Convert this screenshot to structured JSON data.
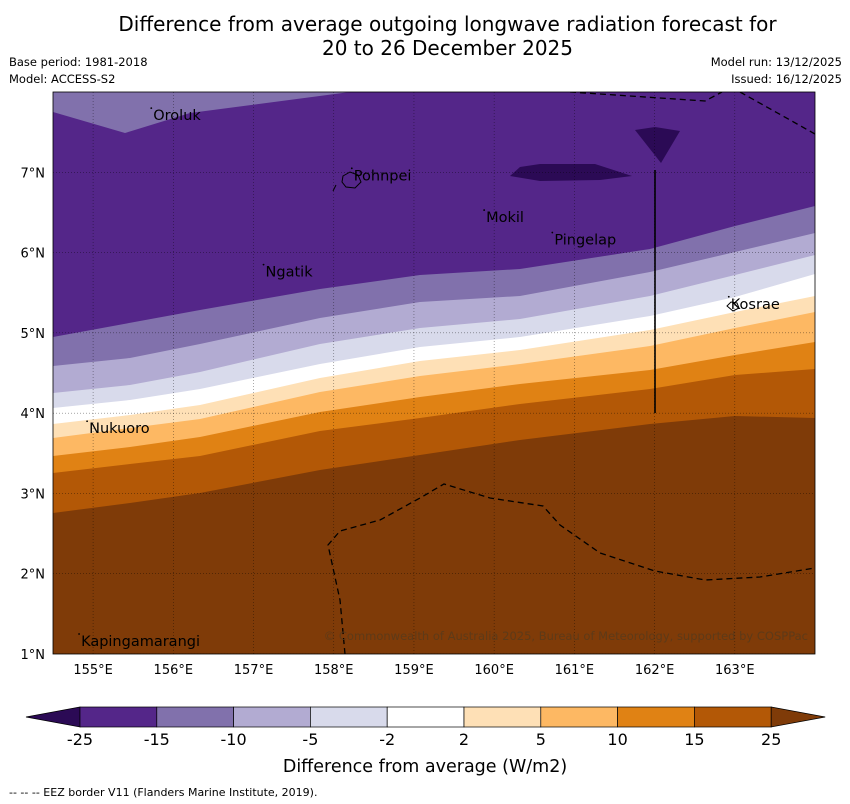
{
  "title": {
    "line1": "Difference from average outgoing longwave radiation forecast for",
    "line2": "20 to 26 December 2025"
  },
  "meta": {
    "base_period": "Base period: 1981-2018",
    "model": "Model: ACCESS-S2",
    "model_run": "Model run: 13/12/2025",
    "issued": "Issued: 16/12/2025"
  },
  "map": {
    "lon_labels": [
      "155°E",
      "156°E",
      "157°E",
      "158°E",
      "159°E",
      "160°E",
      "161°E",
      "162°E",
      "163°E"
    ],
    "lat_labels": [
      "7°N",
      "6°N",
      "5°N",
      "4°N",
      "3°N",
      "2°N",
      "1°N"
    ],
    "lon_range": [
      154.5,
      164.0
    ],
    "lat_range": [
      1.0,
      8.0
    ],
    "places": [
      {
        "name": "Oroluk",
        "lon": 155.75,
        "lat": 7.65
      },
      {
        "name": "Pohnpei",
        "lon": 158.25,
        "lat": 6.9
      },
      {
        "name": "Mokil",
        "lon": 159.9,
        "lat": 6.38
      },
      {
        "name": "Pingelap",
        "lon": 160.75,
        "lat": 6.1
      },
      {
        "name": "Ngatik",
        "lon": 157.15,
        "lat": 5.7
      },
      {
        "name": "Kosrae",
        "lon": 162.95,
        "lat": 5.3
      },
      {
        "name": "Nukuoro",
        "lon": 154.95,
        "lat": 3.75
      },
      {
        "name": "Kapingamarangi",
        "lon": 154.85,
        "lat": 1.1
      }
    ],
    "copyright": "© Commonwealth of Australia 2025, Bureau of Meteorology, supported by COSPPac"
  },
  "chart_data": {
    "type": "filled-contour-map",
    "title": "Difference from average outgoing longwave radiation forecast for 20 to 26 December 2025",
    "variable": "Outgoing longwave radiation anomaly",
    "units": "W/m2",
    "region": {
      "lon": [
        154.5,
        164.0
      ],
      "lat": [
        1.0,
        8.0
      ]
    },
    "levels": [
      -25,
      -15,
      -10,
      -5,
      -2,
      2,
      5,
      10,
      15,
      25
    ],
    "level_labels": [
      "-25",
      "-15",
      "-10",
      "-5",
      "-2",
      "2",
      "5",
      "10",
      "15",
      "25"
    ],
    "colors": [
      "#2b0a55",
      "#542689",
      "#8171ac",
      "#b2abd2",
      "#d8daeb",
      "#ffffff",
      "#fee0b6",
      "#fdb863",
      "#e08214",
      "#b35806",
      "#7f3b08"
    ],
    "colorbar_label": "Difference from average (W/m2)",
    "pattern": "negative anomalies (purple) in the north grading to positive anomalies (brown) in the south"
  },
  "footer": "--  --  -- EEZ border V11 (Flanders Marine Institute, 2019)."
}
